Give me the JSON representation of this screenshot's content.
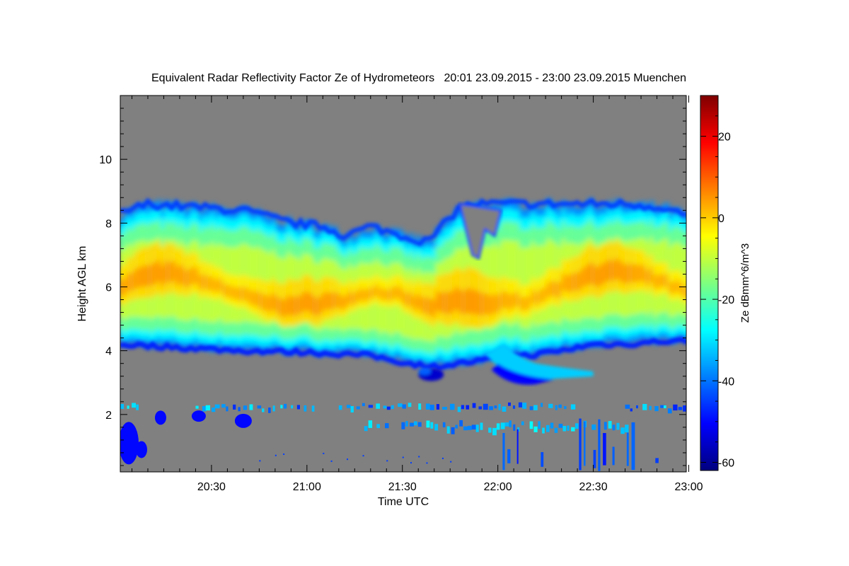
{
  "chart_data": {
    "type": "heatmap",
    "title": "Equivalent Radar Reflectivity Factor Ze of Hydrometeors   20:01 23.09.2015 - 23:00 23.09.2015 Muenchen",
    "xlabel": "Time UTC",
    "ylabel": "Height AGL km",
    "x_ticks": [
      "20:30",
      "21:00",
      "21:30",
      "22:00",
      "22:30",
      "23:00"
    ],
    "x_tick_minutes": [
      30,
      60,
      90,
      120,
      150,
      180
    ],
    "xlim_minutes": [
      1,
      180
    ],
    "y_ticks": [
      2,
      4,
      6,
      8,
      10
    ],
    "ylim": [
      0.2,
      12
    ],
    "background_color": "#808080",
    "colorbar": {
      "label": "Ze dBmm^6/m^3",
      "range": [
        -62,
        30
      ],
      "ticks": [
        -60,
        -40,
        -20,
        0,
        20
      ],
      "colormap": [
        "#00007f",
        "#0000ff",
        "#007fff",
        "#00ffff",
        "#7fff7f",
        "#ffff00",
        "#ff7f00",
        "#ff0000",
        "#7f0000"
      ]
    },
    "features": [
      {
        "label": "upper cloud layer",
        "time_range_minutes": [
          1,
          180
        ],
        "height_range_km": [
          3.8,
          8.8
        ],
        "ze_range_dbz": [
          -45,
          3
        ]
      },
      {
        "label": "fall streak",
        "time_range_minutes": [
          105,
          150
        ],
        "height_range_km": [
          2.8,
          4.3
        ],
        "ze_range_dbz": [
          -50,
          -25
        ]
      },
      {
        "label": "low echoes",
        "time_range_minutes": [
          1,
          180
        ],
        "height_range_km": [
          0.2,
          2.4
        ],
        "ze_range_dbz": [
          -55,
          -25
        ]
      }
    ]
  }
}
